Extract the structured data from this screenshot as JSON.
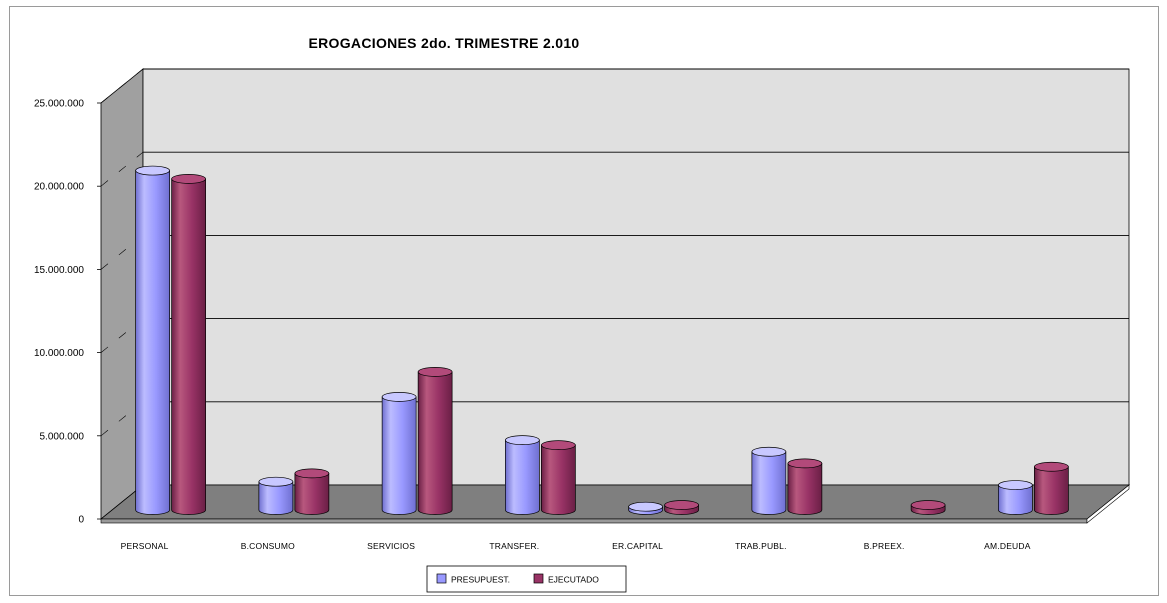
{
  "chart_data": {
    "type": "bar",
    "title": "EROGACIONES 2do. TRIMESTRE 2.010",
    "categories": [
      "PERSONAL",
      "B.CONSUMO",
      "SERVICIOS",
      "TRANSFER.",
      "ER.CAPITAL",
      "TRAB.PUBL.",
      "B.PREEX.",
      "AM.DEUDA"
    ],
    "series": [
      {
        "name": "PRESUPUEST.",
        "color": "#9999ff",
        "values": [
          20400000,
          1700000,
          6800000,
          4200000,
          200000,
          3500000,
          0,
          1500000
        ]
      },
      {
        "name": "EJECUTADO",
        "color": "#993366",
        "values": [
          19900000,
          2200000,
          8300000,
          3900000,
          300000,
          2800000,
          300000,
          2600000
        ]
      }
    ],
    "yticks": [
      "0",
      "5.000.000",
      "10.000.000",
      "15.000.000",
      "20.000.000",
      "25.000.000"
    ],
    "ylim": [
      0,
      25000000
    ],
    "grid": true,
    "legend_position": "bottom",
    "style": "3d-cylinder",
    "colors": {
      "wall": "#e0e0e0",
      "side_wall": "#a0a0a0",
      "floor": "#7f7f7f",
      "grid": "#000000"
    }
  }
}
